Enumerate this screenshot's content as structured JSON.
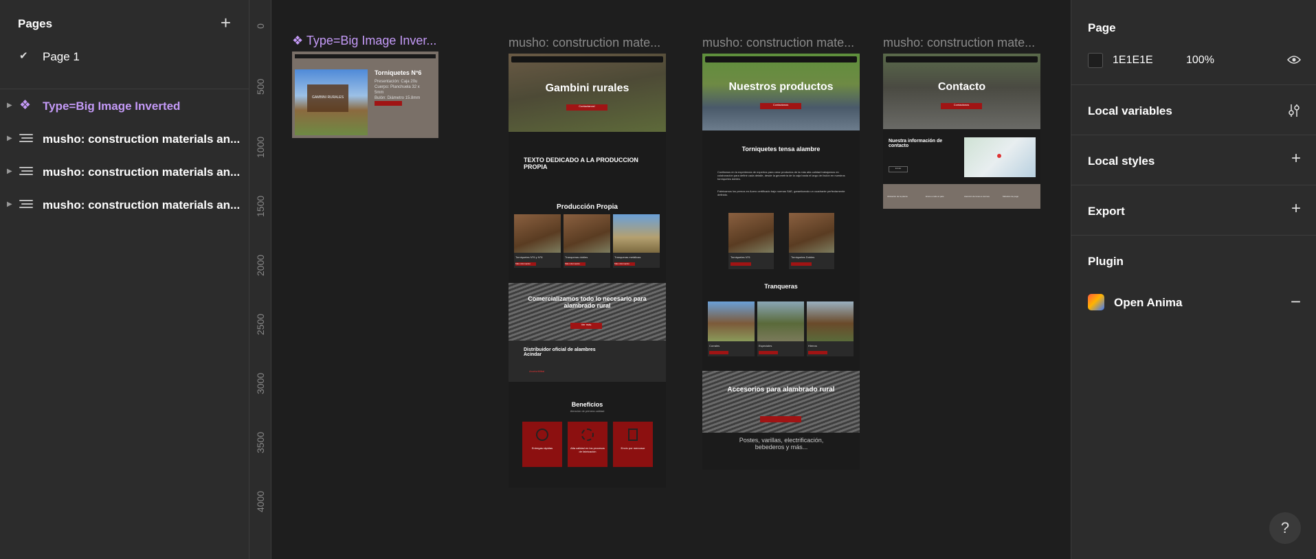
{
  "left_panel": {
    "title": "Pages",
    "pages": [
      {
        "label": "Page 1",
        "selected": true
      }
    ],
    "layers": [
      {
        "label": "Type=Big Image Inverted",
        "kind": "component"
      },
      {
        "label": "musho: construction materials an...",
        "kind": "frame"
      },
      {
        "label": "musho: construction materials an...",
        "kind": "frame"
      },
      {
        "label": "musho: construction materials an...",
        "kind": "frame"
      }
    ]
  },
  "ruler": {
    "ticks": [
      "0",
      "500",
      "1000",
      "1500",
      "2000",
      "2500",
      "3000",
      "3500",
      "4000"
    ]
  },
  "canvas": {
    "frame_titles": [
      "Type=Big Image Inver...",
      "musho: construction mate...",
      "musho: construction mate...",
      "musho: construction mate..."
    ],
    "component": {
      "heading": "Torniquetes N°6",
      "lines": [
        "Presentación: Caja 20u",
        "Cuerpo: Planchuela 32 x",
        "5mm",
        "Bulón: Diámetro 15.8mm"
      ],
      "logo_text": "GAMBINI RURALES"
    },
    "frame1": {
      "hero": "Gambini rurales",
      "hero_button": "Contactanos!",
      "intro": "TEXTO DEDICADO A LA PRODUCCION PROPIA",
      "produccion": "Producción Propia",
      "products": [
        "Torniquetes N°6 y N°8",
        "Tranqueras dobles",
        "Tranqueras metálicas"
      ],
      "product_button": "Más información",
      "banner": "Comercializamos todo lo necesario para alambrado rural",
      "banner_button": "Ver más",
      "distribuidor": "Distribuidor oficial de alambres Acindar",
      "acindar": "ArcelorMittal",
      "beneficios": "Beneficios",
      "beneficios_sub": "Atención de primera calidad",
      "benefits": [
        "Entregas rápidas",
        "Alta calidad en los procesos de fabricación",
        "Envío por mercosur"
      ]
    },
    "frame2": {
      "hero": "Nuestros productos",
      "hero_button": "Contactanos",
      "section": "Torniquetes tensa alambre",
      "para1": "Confiamos en la experiencia de expertos para crear productos de la más alta calidad trabajamos en colaboración para definir cada detalle, desde la geometría de la caja hasta el largo del bulón en nuestros torniquetes dobles.",
      "para2": "Fabricamos los pernos en Acero certificado bajo normas SAE, garantizando un cuadrante perfectamente definido.",
      "products": [
        "Torniquetes N°6",
        "Torniquetes Dobles"
      ],
      "tranqueras": "Tranqueras",
      "tranq_items": [
        "Corrales",
        "Especiales",
        "Hierros"
      ],
      "accesorios": "Accesorios para alambrado rural",
      "accesorios_sub": "Postes, varillas, electrificación, bebederos y más..."
    },
    "frame3": {
      "hero": "Contacto",
      "hero_button": "Contactanos",
      "info": "Nuestra información de contacto",
      "contact_button": "Enviar",
      "footer_items": [
        "Ubicación de la planta",
        "Envío a todo el país",
        "Atención de lunes a viernes",
        "Métodos de pago"
      ]
    }
  },
  "right_panel": {
    "page_title": "Page",
    "bg_hex": "1E1E1E",
    "bg_opacity": "100%",
    "local_variables": "Local variables",
    "local_styles": "Local styles",
    "export": "Export",
    "plugin_title": "Plugin",
    "plugin_name": "Open Anima",
    "help": "?"
  },
  "colors": {
    "panel": "#2c2c2c",
    "canvas": "#1e1e1e",
    "component": "#c49af7",
    "accent_red": "#a01414"
  }
}
